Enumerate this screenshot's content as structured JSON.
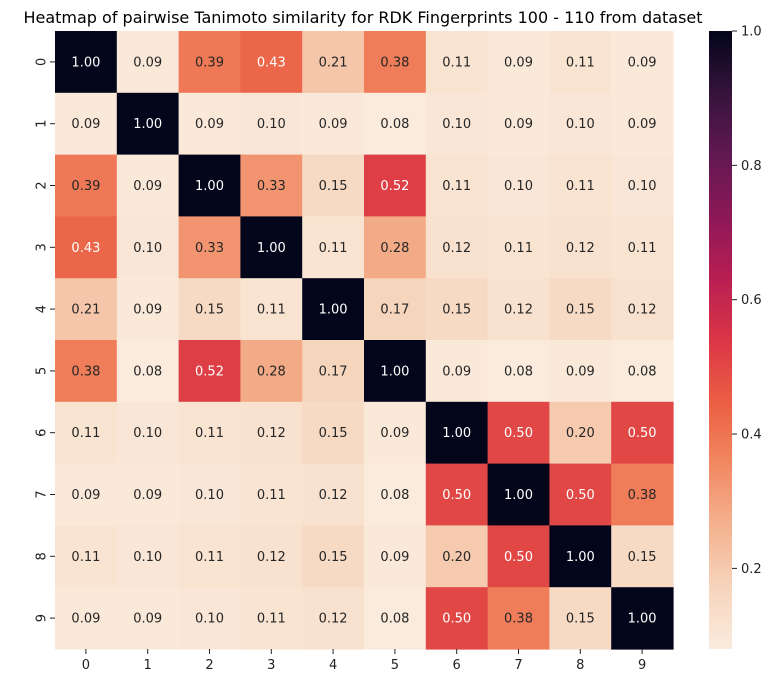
{
  "chart_data": {
    "type": "heatmap",
    "title": "Heatmap of pairwise Tanimoto similarity for RDK Fingerprints 100 - 110 from dataset",
    "x_categories": [
      "0",
      "1",
      "2",
      "3",
      "4",
      "5",
      "6",
      "7",
      "8",
      "9"
    ],
    "y_categories": [
      "0",
      "1",
      "2",
      "3",
      "4",
      "5",
      "6",
      "7",
      "8",
      "9"
    ],
    "values": [
      [
        1.0,
        0.09,
        0.39,
        0.43,
        0.21,
        0.38,
        0.11,
        0.09,
        0.11,
        0.09
      ],
      [
        0.09,
        1.0,
        0.09,
        0.1,
        0.09,
        0.08,
        0.1,
        0.09,
        0.1,
        0.09
      ],
      [
        0.39,
        0.09,
        1.0,
        0.33,
        0.15,
        0.52,
        0.11,
        0.1,
        0.11,
        0.1
      ],
      [
        0.43,
        0.1,
        0.33,
        1.0,
        0.11,
        0.28,
        0.12,
        0.11,
        0.12,
        0.11
      ],
      [
        0.21,
        0.09,
        0.15,
        0.11,
        1.0,
        0.17,
        0.15,
        0.12,
        0.15,
        0.12
      ],
      [
        0.38,
        0.08,
        0.52,
        0.28,
        0.17,
        1.0,
        0.09,
        0.08,
        0.09,
        0.08
      ],
      [
        0.11,
        0.1,
        0.11,
        0.12,
        0.15,
        0.09,
        1.0,
        0.5,
        0.2,
        0.5
      ],
      [
        0.09,
        0.09,
        0.1,
        0.11,
        0.12,
        0.08,
        0.5,
        1.0,
        0.5,
        0.38
      ],
      [
        0.11,
        0.1,
        0.11,
        0.12,
        0.15,
        0.09,
        0.2,
        0.5,
        1.0,
        0.15
      ],
      [
        0.09,
        0.09,
        0.1,
        0.11,
        0.12,
        0.08,
        0.5,
        0.38,
        0.15,
        1.0
      ]
    ],
    "value_format": "2 decimals",
    "colormap": "rocket_r",
    "vmin": 0.08,
    "vmax": 1.0,
    "colorbar": {
      "ticks": [
        0.2,
        0.4,
        0.6,
        0.8,
        1.0
      ],
      "tick_labels": [
        "0.2",
        "0.4",
        "0.6",
        "0.8",
        "1.0"
      ]
    },
    "grid": false
  }
}
